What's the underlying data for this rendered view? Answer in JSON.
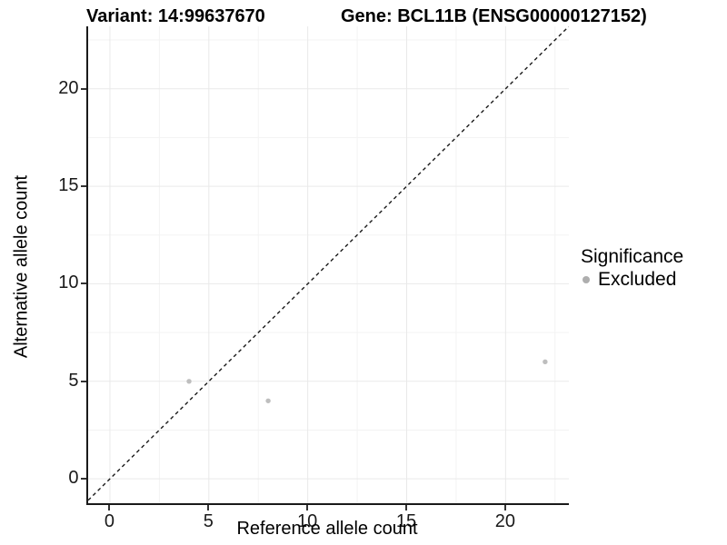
{
  "titles": {
    "variant": "Variant: 14:99637670",
    "gene": "Gene: BCL11B (ENSG00000127152)"
  },
  "chart_data": {
    "type": "scatter",
    "title_left": "Variant: 14:99637670",
    "title_right": "Gene: BCL11B (ENSG00000127152)",
    "xlabel": "Reference allele count",
    "ylabel": "Alternative allele count",
    "x_ticks": [
      0,
      5,
      10,
      15,
      20
    ],
    "y_ticks": [
      0,
      5,
      10,
      15,
      20
    ],
    "xlim": [
      -1.1,
      23.2
    ],
    "ylim": [
      -1.25,
      23.2
    ],
    "grid": "on",
    "minor_grid": true,
    "grid_major_color": "#e9e9e9",
    "grid_minor_color": "#f3f3f3",
    "reference_line": {
      "type": "identity",
      "slope": 1,
      "intercept": 0,
      "style": "dashed",
      "color": "#1a1a1a"
    },
    "series": [
      {
        "name": "Excluded",
        "color": "#bebebe",
        "point_radius": 2.7,
        "points": [
          {
            "x": 4,
            "y": 5
          },
          {
            "x": 8,
            "y": 4
          },
          {
            "x": 22,
            "y": 6
          }
        ]
      }
    ],
    "legend": {
      "title": "Significance",
      "position": "right",
      "entries": [
        {
          "label": "Excluded",
          "color": "#aeaeae"
        }
      ]
    }
  }
}
